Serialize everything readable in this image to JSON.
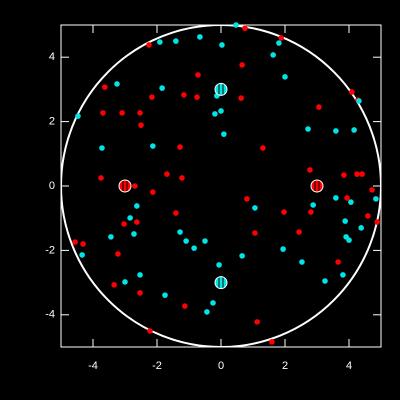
{
  "chart_data": {
    "type": "scatter",
    "background": "#000000",
    "xlim": [
      -5,
      5
    ],
    "ylim": [
      -5,
      5
    ],
    "xticks": [
      -4,
      -2,
      0,
      2,
      4
    ],
    "yticks": [
      -4,
      -2,
      0,
      2,
      4
    ],
    "circle": {
      "radius": 5,
      "color": "#ffffff"
    },
    "series": [
      {
        "color": "#ff0000",
        "marker": "dot",
        "x": [
          0.75,
          -2.25,
          1.88,
          -0.72,
          0.66,
          -3.63,
          -3.09,
          -3.69,
          -2.53,
          -2.16,
          -1.16,
          -0.75,
          0.63,
          3.06,
          4.09,
          4.28,
          -2.5,
          1.31,
          -1.28,
          -1.69,
          -3.75,
          -2.69,
          -2.13,
          -1.22,
          2.78,
          3.84,
          4.25,
          4.41,
          4.72,
          3.94,
          0.81,
          1.97,
          2.81,
          2.44,
          1.06,
          -2.63,
          -1.41,
          -3.03,
          -4.56,
          -4.31,
          -3.22,
          -3.34,
          -2.53,
          -1.13,
          1.13,
          -2.22,
          1.59,
          3.66,
          4.59,
          4.88
        ],
        "values": [
          4.9,
          4.38,
          4.6,
          3.45,
          3.76,
          3.07,
          2.27,
          2.27,
          2.27,
          2.76,
          2.83,
          2.76,
          2.73,
          2.45,
          2.92,
          2.67,
          1.89,
          1.18,
          1.21,
          0.37,
          0.25,
          0,
          -0.19,
          0.25,
          0.5,
          0.34,
          0.37,
          0.37,
          -0.12,
          -0.37,
          -0.4,
          -0.81,
          -0.81,
          -1.43,
          -1.46,
          -1.12,
          -0.84,
          -1.18,
          -1.74,
          -1.8,
          -2.11,
          -3.07,
          -3.32,
          -3.73,
          -4.22,
          -4.5,
          -4.84,
          -2.36,
          -0.93,
          -1.12
        ]
      },
      {
        "color": "#00e5e5",
        "marker": "dot",
        "x": [
          0.47,
          -1.91,
          -1.41,
          -0.66,
          0.03,
          1.81,
          1.63,
          2.0,
          -3.25,
          -1.84,
          -4.47,
          -0.13,
          -0.19,
          0,
          2.72,
          4.16,
          3.59,
          4.31,
          -2.13,
          0.09,
          -3.72,
          -2.63,
          1.06,
          2.88,
          4.06,
          3.88,
          4.38,
          -2.84,
          -2.72,
          -3.44,
          -1.28,
          -1.09,
          -0.5,
          -0.06,
          0.66,
          1.94,
          2.53,
          3.91,
          4.0,
          3.25,
          3.81,
          -4.34,
          -2.53,
          -3.0,
          -0.25,
          -0.44,
          -1.75,
          -0.84,
          3.59,
          4.84
        ],
        "values": [
          5.0,
          4.47,
          4.5,
          4.63,
          4.38,
          4.44,
          4.07,
          3.39,
          3.17,
          3.04,
          2.17,
          2.8,
          2.24,
          2.33,
          1.77,
          1.74,
          1.71,
          2.64,
          1.24,
          1.61,
          1.18,
          -0.62,
          -0.68,
          -0.59,
          -0.5,
          -1.09,
          -1.3,
          -0.99,
          -1.49,
          -1.58,
          -1.43,
          -1.71,
          -1.71,
          -2.45,
          -2.17,
          -1.96,
          -2.36,
          -1.58,
          -1.68,
          -2.95,
          -2.76,
          -2.14,
          -2.76,
          -2.98,
          -3.63,
          -3.91,
          -3.39,
          -1.93,
          -0.37,
          -0.4
        ]
      },
      {
        "color": "#ff0000",
        "marker": "circled",
        "x": [
          -3,
          3
        ],
        "values": [
          0,
          0
        ]
      },
      {
        "color": "#00e5e5",
        "marker": "circled",
        "x": [
          0,
          0
        ],
        "values": [
          3,
          -3
        ]
      }
    ]
  }
}
